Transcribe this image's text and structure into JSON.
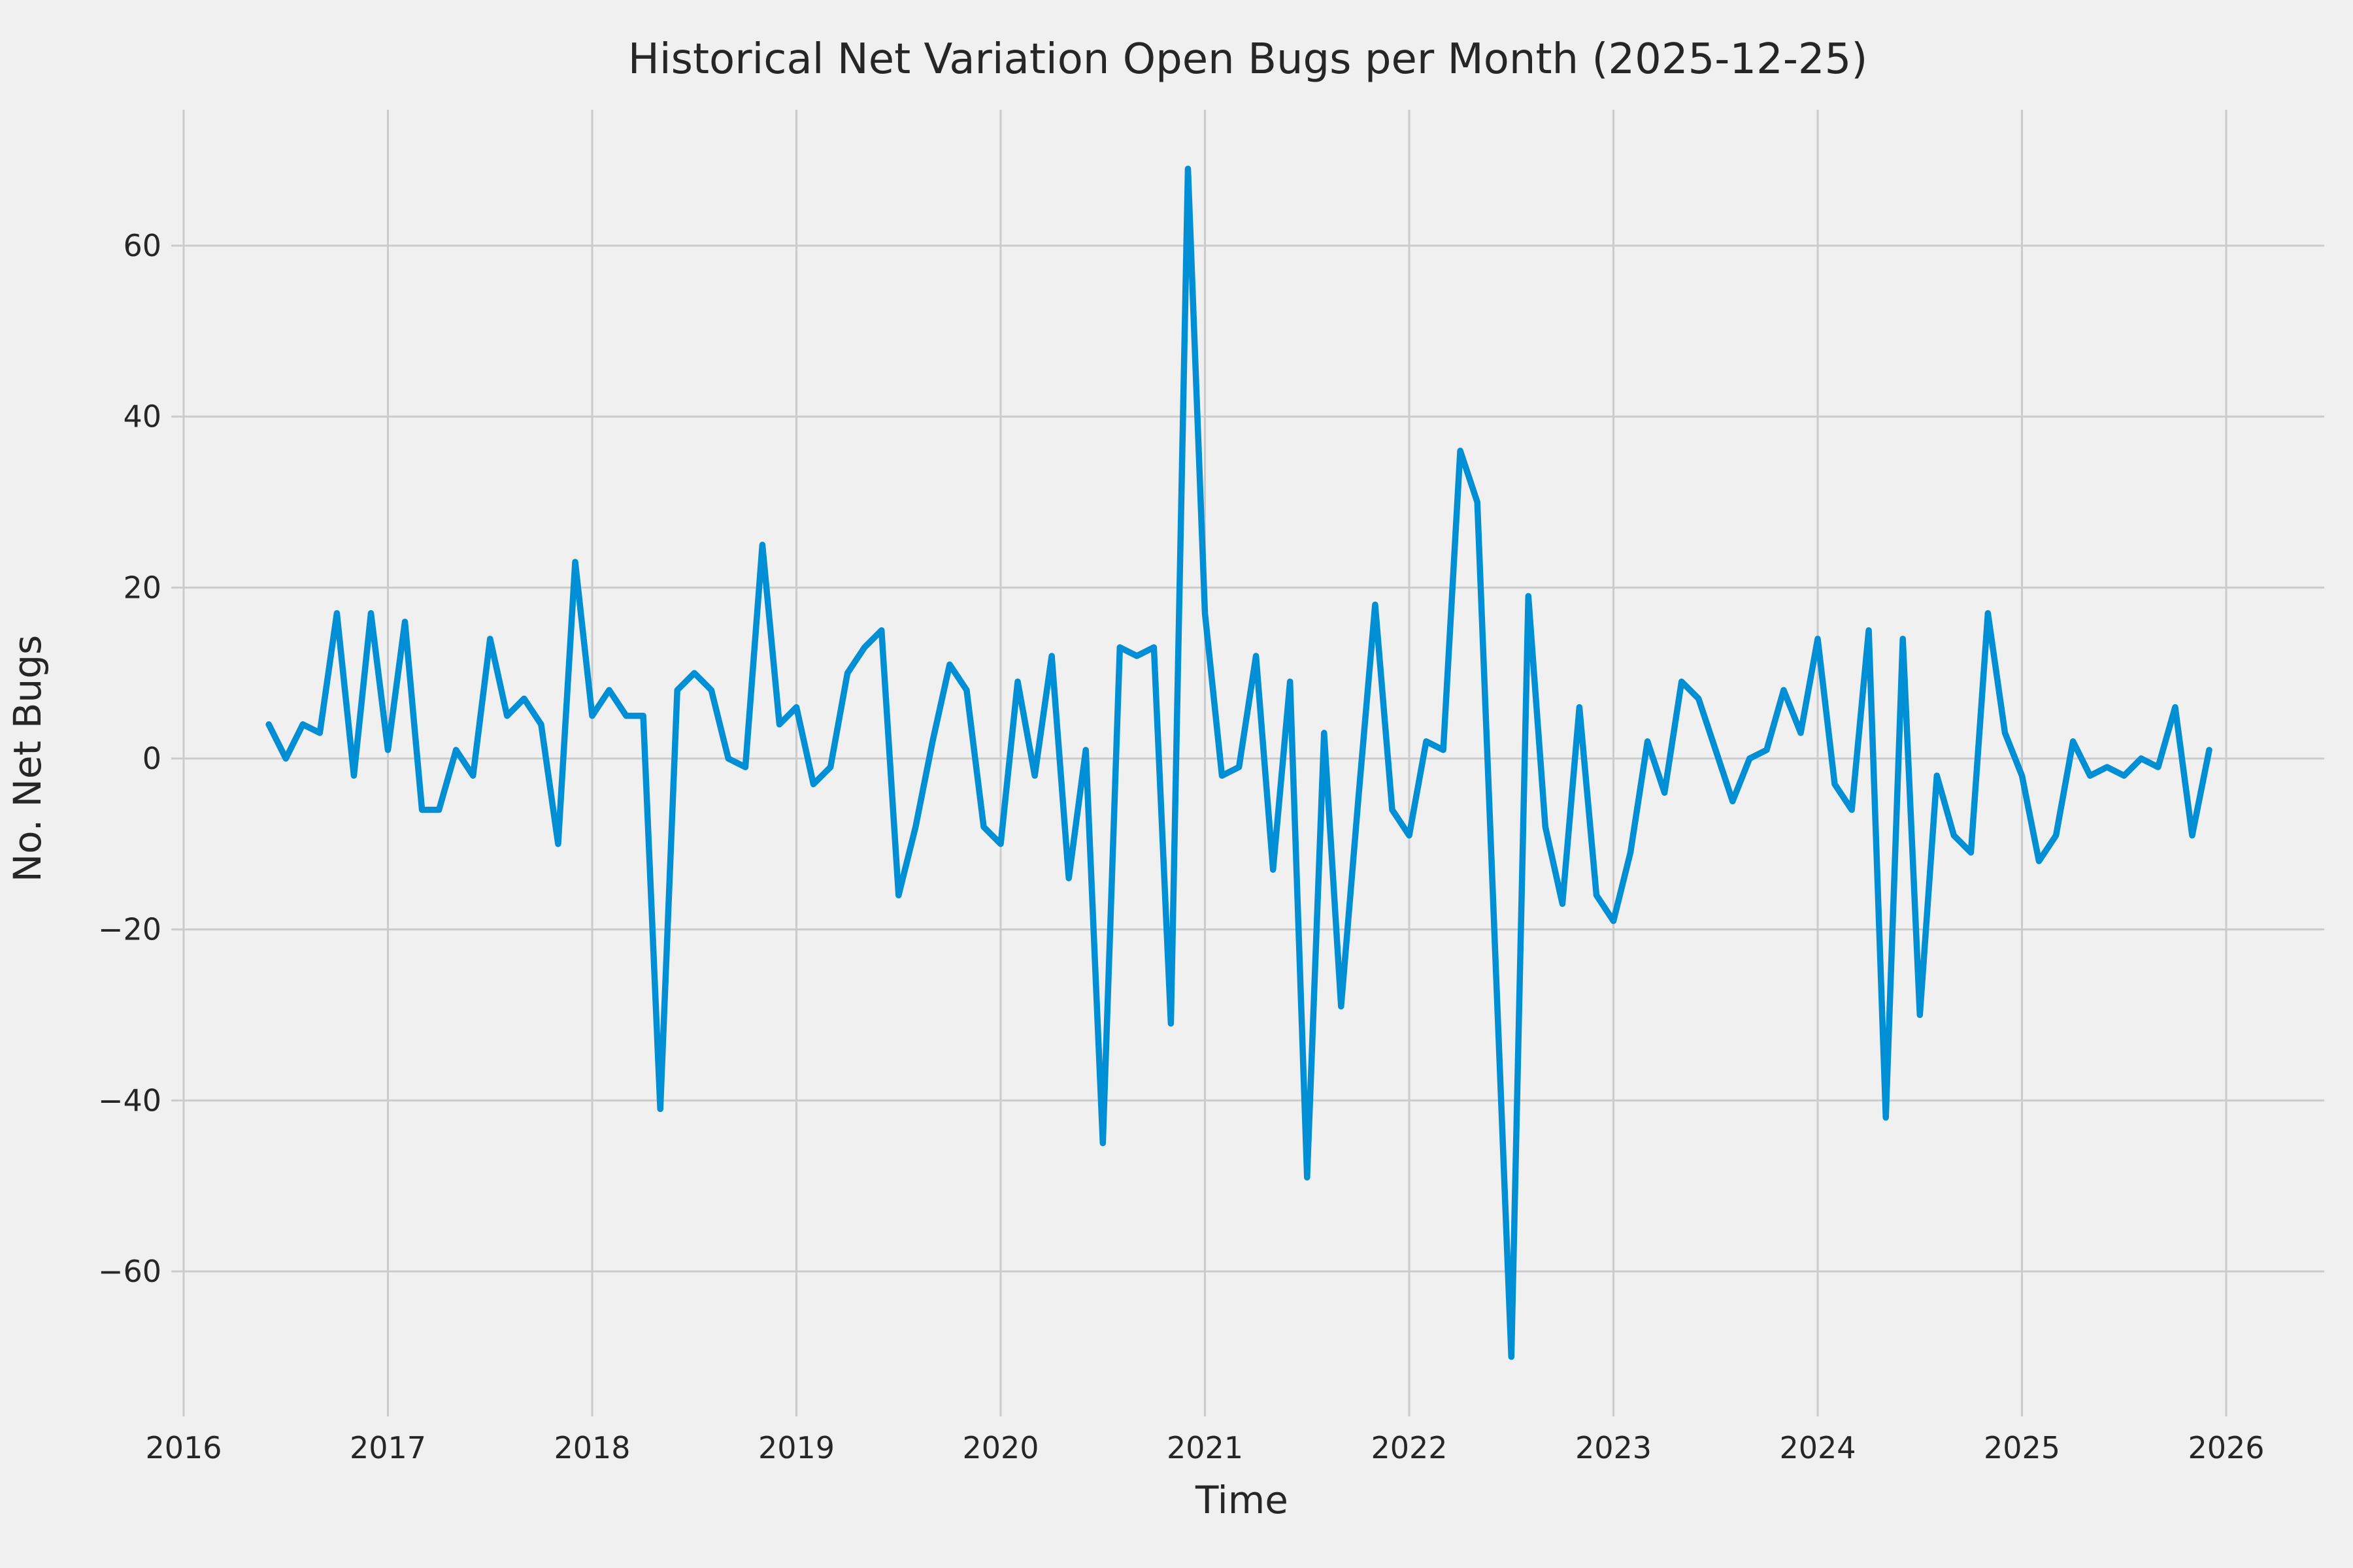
{
  "figure": {
    "title": "Historical Net Variation Open Bugs per Month (2025-12-25)",
    "background_color": "#f0f0f0",
    "grid_color": "#cbcbcb",
    "text_color": "#262626",
    "line_color": "#008fd5"
  },
  "chart_data": {
    "type": "line",
    "title": "Historical Net Variation Open Bugs per Month (2025-12-25)",
    "xlabel": "Time",
    "ylabel": "No. Net Bugs",
    "grid": true,
    "legend": false,
    "x_tick_labels": [
      "2016",
      "2017",
      "2018",
      "2019",
      "2020",
      "2021",
      "2022",
      "2023",
      "2024",
      "2025",
      "2026"
    ],
    "y_tick_labels": [
      "−60",
      "−40",
      "−20",
      "0",
      "20",
      "40",
      "60"
    ],
    "y_tick_values": [
      -60,
      -40,
      -20,
      0,
      20,
      40,
      60
    ],
    "ylim": [
      -77,
      76
    ],
    "xlim_years": [
      2015.94,
      2026.4
    ],
    "series": [
      {
        "name": "net-open-bugs-per-month",
        "start_month": "2016-06",
        "frequency": "monthly",
        "values": [
          4,
          0,
          4,
          3,
          17,
          -2,
          17,
          1,
          16,
          -6,
          -6,
          1,
          -2,
          14,
          5,
          7,
          4,
          -10,
          23,
          5,
          8,
          5,
          5,
          -41,
          8,
          10,
          8,
          0,
          -1,
          25,
          4,
          6,
          -3,
          -1,
          10,
          13,
          15,
          -16,
          -8,
          2,
          11,
          8,
          -8,
          -10,
          9,
          -2,
          12,
          -14,
          1,
          -45,
          13,
          12,
          13,
          -31,
          69,
          17,
          -2,
          -1,
          12,
          -13,
          9,
          -49,
          3,
          -29,
          -5,
          18,
          -6,
          -9,
          2,
          1,
          36,
          30,
          -20,
          -70,
          19,
          -8,
          -17,
          6,
          -16,
          -19,
          -11,
          2,
          -4,
          9,
          7,
          1,
          -5,
          0,
          1,
          8,
          3,
          14,
          -3,
          -6,
          15,
          -42,
          14,
          -30,
          -2,
          -9,
          -11,
          17,
          3,
          -2,
          -12,
          -9,
          2,
          -2,
          -1,
          -2,
          0,
          -1,
          6,
          -9,
          1
        ]
      }
    ]
  }
}
